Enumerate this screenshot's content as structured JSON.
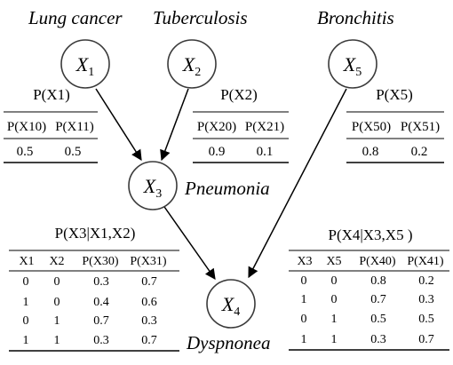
{
  "nodes": {
    "x1": {
      "label_main": "X",
      "label_sub": "1",
      "caption": "Lung cancer"
    },
    "x2": {
      "label_main": "X",
      "label_sub": "2",
      "caption": "Tuberculosis"
    },
    "x5": {
      "label_main": "X",
      "label_sub": "5",
      "caption": "Bronchitis"
    },
    "x3": {
      "label_main": "X",
      "label_sub": "3",
      "caption": "Pneumonia"
    },
    "x4": {
      "label_main": "X",
      "label_sub": "4",
      "caption": "Dyspnonea"
    }
  },
  "edges": [
    {
      "from": "x1",
      "to": "x3"
    },
    {
      "from": "x2",
      "to": "x3"
    },
    {
      "from": "x3",
      "to": "x4"
    },
    {
      "from": "x5",
      "to": "x4"
    }
  ],
  "tables": {
    "px1": {
      "title": "P(X1)",
      "headers": [
        "P(X10)",
        "P(X11)"
      ],
      "rows": [
        [
          "0.5",
          "0.5"
        ]
      ]
    },
    "px2": {
      "title": "P(X2)",
      "headers": [
        "P(X20)",
        "P(X21)"
      ],
      "rows": [
        [
          "0.9",
          "0.1"
        ]
      ]
    },
    "px5": {
      "title": "P(X5)",
      "headers": [
        "P(X50)",
        "P(X51)"
      ],
      "rows": [
        [
          "0.8",
          "0.2"
        ]
      ]
    },
    "px3": {
      "title": "P(X3|X1,X2)",
      "headers": [
        "X1",
        "X2",
        "P(X30)",
        "P(X31)"
      ],
      "rows": [
        [
          "0",
          "0",
          "0.3",
          "0.7"
        ],
        [
          "1",
          "0",
          "0.4",
          "0.6"
        ],
        [
          "0",
          "1",
          "0.7",
          "0.3"
        ],
        [
          "1",
          "1",
          "0.3",
          "0.7"
        ]
      ]
    },
    "px4": {
      "title": "P(X4|X3,X5 )",
      "headers": [
        "X3",
        "X5",
        "P(X40)",
        "P(X41)"
      ],
      "rows": [
        [
          "0",
          "0",
          "0.8",
          "0.2"
        ],
        [
          "1",
          "0",
          "0.7",
          "0.3"
        ],
        [
          "0",
          "1",
          "0.5",
          "0.5"
        ],
        [
          "1",
          "1",
          "0.3",
          "0.7"
        ]
      ]
    }
  }
}
